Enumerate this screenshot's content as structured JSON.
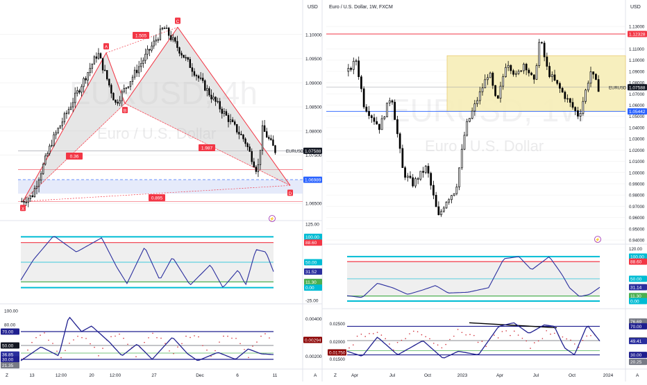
{
  "colors": {
    "up": "#000000",
    "down": "#000000",
    "pattern_red": "#f23645",
    "pattern_fill": "#c8c8c8",
    "rsi_line": "#2a2e9e",
    "cyan": "#00bcd4",
    "red_level": "#f23645",
    "green_level": "#4caf50",
    "navy": "#1f1f8f",
    "box_yellow": "#f7eeb8",
    "blue_dash": "#2962ff",
    "dots": "#d0303a",
    "grid": "#eeeeee"
  },
  "left": {
    "currency": "USD",
    "watermark_symbol": "EURUSD, 4h",
    "watermark_name": "Euro / U.S. Dollar",
    "price_axis_labels": [
      "1.10000",
      "1.09500",
      "1.09000",
      "1.08500",
      "1.08000",
      "1.07500",
      "1.06500"
    ],
    "price_badges": [
      {
        "name": "EURUSD",
        "value": "1.07588",
        "fill": "#131722"
      },
      {
        "name": "",
        "value": "1.06989",
        "fill": "#2962ff"
      }
    ],
    "pattern_points": [
      {
        "label": "X",
        "price": 1.0654
      },
      {
        "label": "A",
        "price": 1.0962
      },
      {
        "label": "B",
        "price": 1.0857
      },
      {
        "label": "C",
        "price": 1.1015
      },
      {
        "label": "D",
        "price": 1.0687
      }
    ],
    "ratio_labels": [
      "1.505",
      "0.36",
      "1.987",
      "0.895"
    ],
    "chart_data": [
      {
        "type": "line",
        "title": "Bat/Cypher style harmonic pattern on EURUSD 4h",
        "ylim": [
          1.064,
          1.104
        ],
        "x": [
          "X",
          "A",
          "B",
          "C",
          "D"
        ],
        "values": [
          1.0654,
          1.0962,
          1.0857,
          1.1015,
          1.0687
        ],
        "annotations": [
          "X",
          "A",
          "B",
          "C",
          "D",
          "1.505",
          "0.36",
          "1.987",
          "0.895"
        ],
        "reference_lines": [
          1.07588,
          1.06989,
          1.072,
          1.0654
        ]
      },
      {
        "type": "line",
        "title": "Oscillator panel 1",
        "ylim": [
          -25,
          125
        ],
        "levels": [
          100,
          88.6,
          50,
          11.3,
          0
        ],
        "last_value": 31.52
      },
      {
        "type": "line",
        "title": "Oscillator panel 2",
        "ylim": [
          20,
          100
        ],
        "levels": [
          70,
          50,
          30
        ],
        "last_value": 36.85
      }
    ],
    "osc1_axis_labels": [
      "125.00",
      "-25.00"
    ],
    "osc1_badges": [
      {
        "value": "100.00",
        "fill": "#00bcd4"
      },
      {
        "value": "88.60",
        "fill": "#f23645"
      },
      {
        "value": "50.00",
        "fill": "#00bcd4"
      },
      {
        "value": "31.52",
        "fill": "#2a2e9e"
      },
      {
        "value": "11.30",
        "fill": "#4caf50"
      },
      {
        "value": "0.00",
        "fill": "#00bcd4"
      }
    ],
    "osc2_axis_labels": [
      "100.00",
      "80.00"
    ],
    "osc2_right_labels": [
      "0.00400",
      "0.00200"
    ],
    "osc2_badges": [
      {
        "value": "70.00",
        "fill": "#1f1f8f"
      },
      {
        "value": "50.00",
        "fill": "#131722"
      },
      {
        "value": "36.85",
        "fill": "#2a2e9e"
      },
      {
        "value": "30.00",
        "fill": "#1f1f8f"
      },
      {
        "value": "21.35",
        "fill": "#787b86"
      }
    ],
    "osc2_right_badge": "0.00294",
    "time_labels": [
      "13",
      "12:00",
      "20",
      "12:00",
      "27",
      "Dec",
      "6",
      "11"
    ],
    "corner_left": "Z",
    "corner_right": "A"
  },
  "right": {
    "title": "Euro / U.S. Dollar, 1W, FXCM",
    "currency": "USD",
    "watermark_symbol": "EURUSD, 1W",
    "watermark_name": "Euro / U.S. Dollar",
    "price_axis_labels": [
      "1.13000",
      "1.11000",
      "1.10000",
      "1.09000",
      "1.08000",
      "1.07000",
      "1.06000",
      "1.05000",
      "1.04000",
      "1.03000",
      "1.02000",
      "1.01000",
      "1.00000",
      "0.99000",
      "0.98000",
      "0.97000",
      "0.96000",
      "0.95000",
      "0.94000"
    ],
    "price_badges": [
      {
        "name": "",
        "value": "1.12328",
        "fill": "#f23645"
      },
      {
        "name": "EURUSD",
        "value": "1.07588",
        "fill": "#131722"
      },
      {
        "name": "",
        "value": "1.05442",
        "fill": "#2962ff"
      }
    ],
    "osc1_axis_labels": [
      "120.00"
    ],
    "osc1_badges": [
      {
        "value": "100.00",
        "fill": "#00bcd4"
      },
      {
        "value": "88.60",
        "fill": "#f23645"
      },
      {
        "value": "50.00",
        "fill": "#00bcd4"
      },
      {
        "value": "31.14",
        "fill": "#2a2e9e"
      },
      {
        "value": "11.30",
        "fill": "#4caf50"
      },
      {
        "value": "0.00",
        "fill": "#00bcd4"
      }
    ],
    "osc2_left_labels": [
      "0.02500",
      "0.02000",
      "0.01500"
    ],
    "osc2_left_badge": "0.01750",
    "osc2_badges": [
      {
        "value": "76.69",
        "fill": "#787b86"
      },
      {
        "value": "70.00",
        "fill": "#1f1f8f"
      },
      {
        "value": "50.00",
        "fill": "#131722"
      },
      {
        "value": "49.41",
        "fill": "#2a2e9e"
      },
      {
        "value": "30.00",
        "fill": "#1f1f8f"
      },
      {
        "value": "20.25",
        "fill": "#787b86"
      }
    ],
    "time_labels": [
      "Apr",
      "Jul",
      "Oct",
      "2023",
      "Apr",
      "Jul",
      "Oct",
      "2024"
    ],
    "corner_left": "Z",
    "corner_right": "A",
    "chart_data": {
      "type": "candlestick",
      "title": "Euro / U.S. Dollar, 1W, FXCM",
      "ylim": [
        0.94,
        1.135
      ],
      "range_box": [
        1.0544,
        1.104
      ],
      "reference_lines": [
        1.12328,
        1.07588,
        1.05442
      ],
      "last_value": 1.07588
    }
  }
}
